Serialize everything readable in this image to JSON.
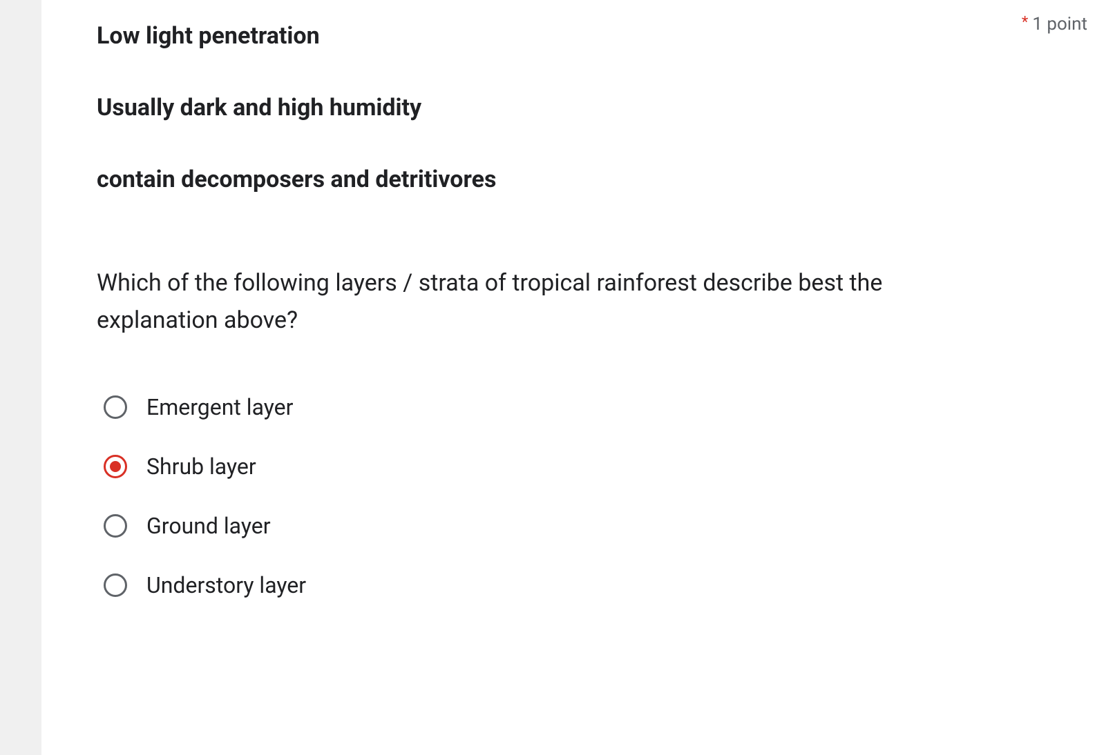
{
  "points": {
    "star": "*",
    "text": "1 point"
  },
  "description": {
    "line1": "Low light penetration",
    "line2": "Usually dark and high humidity",
    "line3": "contain decomposers and detritivores"
  },
  "question": "Which of the following layers / strata of tropical rainforest describe best the explanation above?",
  "options": [
    {
      "label": "Emergent layer",
      "selected": false
    },
    {
      "label": "Shrub layer",
      "selected": true
    },
    {
      "label": "Ground layer",
      "selected": false
    },
    {
      "label": "Understory layer",
      "selected": false
    }
  ],
  "colors": {
    "required_star": "#d93025",
    "selected_radio": "#d93025",
    "unselected_radio": "#5f6368",
    "text": "#202124",
    "muted": "#5f6368",
    "card_bg": "#ffffff",
    "page_bg": "#f0f0f0"
  }
}
